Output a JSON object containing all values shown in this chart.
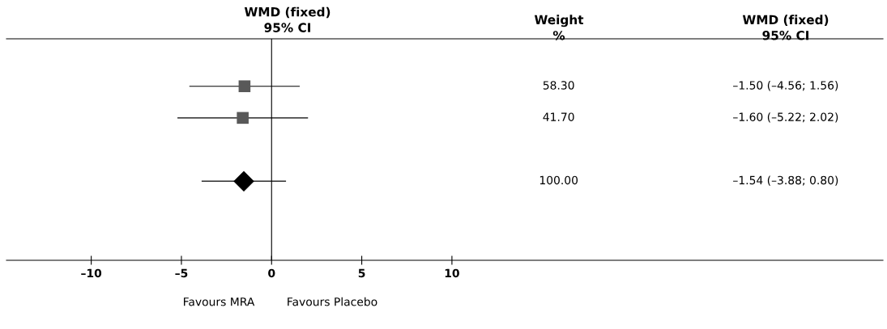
{
  "chart_data": {
    "type": "scatter",
    "orientation": "horizontal",
    "title": "WMD (fixed)\n95% CI",
    "categories": [
      null,
      null,
      null,
      null,
      null,
      null,
      null
    ],
    "xlim": [
      -14.7,
      33.9
    ],
    "xticks": [
      {
        "value": -10,
        "label": "–10"
      },
      {
        "value": -5,
        "label": "–5"
      },
      0,
      5,
      10
    ],
    "series": [
      {
        "marker": "square",
        "color": "#595959",
        "values": [
          null,
          -1.5,
          -1.6,
          null,
          null,
          null,
          null
        ],
        "errors": [
          null,
          [
            -4.56,
            1.56
          ],
          [
            -5.22,
            2.02
          ],
          null,
          null,
          null,
          null
        ]
      },
      {
        "marker": "diamond",
        "color": "#000000",
        "values": [
          null,
          null,
          null,
          null,
          -1.54,
          null,
          null
        ],
        "errors": [
          null,
          null,
          null,
          null,
          [
            -3.88,
            0.8
          ],
          null,
          null
        ]
      }
    ],
    "ref_lines": [
      {
        "axis": "x",
        "value": 0,
        "color": "#000000"
      }
    ],
    "annotations": [
      "Weight\n%",
      "WMD (fixed)\n95% CI",
      "58.30",
      "41.70",
      "100.00",
      "–1.50 (–4.56; 1.56)",
      "–1.60 (–5.22; 2.02)",
      "–1.54 (–3.88; 0.80)",
      "Favours MRA",
      "Favours Placebo"
    ],
    "grid": false,
    "legend": false
  }
}
